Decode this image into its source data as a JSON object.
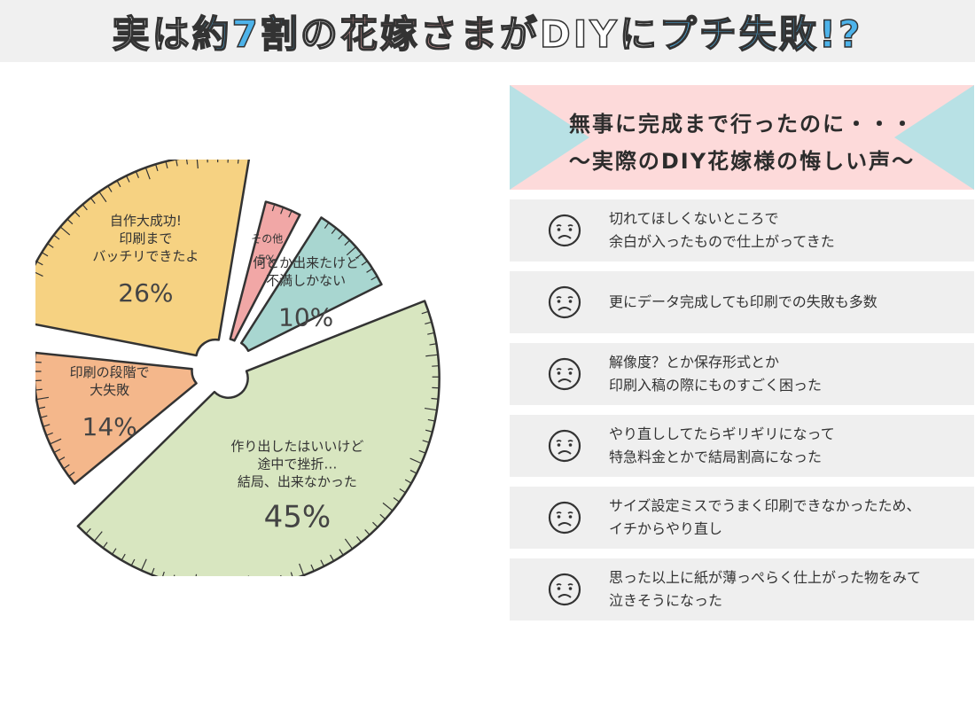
{
  "header": {
    "title_parts": [
      {
        "text": "実は",
        "color": "#ffffff"
      },
      {
        "text": "約7割",
        "color": "#4db3ea"
      },
      {
        "text": "の",
        "color": "#ffffff"
      },
      {
        "text": "花嫁さま",
        "color": "#f7b3b3"
      },
      {
        "text": "が",
        "color": "#ffffff"
      },
      {
        "text": "DIY",
        "color": "#ffffff"
      },
      {
        "text": "に",
        "color": "#ffffff"
      },
      {
        "text": "プチ失敗!?",
        "color": "#4db3ea"
      }
    ]
  },
  "chart_data": {
    "type": "pie",
    "title": "",
    "slices": [
      {
        "label_lines": [
          "作り出したはいいけど",
          "途中で挫折…",
          "結局、出来なかった"
        ],
        "value": 45,
        "percent_label": "45%",
        "color": "#d8e6c0"
      },
      {
        "label_lines": [
          "印刷の段階で",
          "大失敗"
        ],
        "value": 14,
        "percent_label": "14%",
        "color": "#f4b78b"
      },
      {
        "label_lines": [
          "自作大成功!",
          "印刷まで",
          "バッチリできたよ"
        ],
        "value": 26,
        "percent_label": "26%",
        "color": "#f6d282"
      },
      {
        "label_lines": [
          "その他"
        ],
        "value": 5,
        "percent_label": "5%",
        "color": "#f1a7a6"
      },
      {
        "label_lines": [
          "何とか出来たけど",
          "不満しかない"
        ],
        "value": 10,
        "percent_label": "10%",
        "color": "#a8d6d0"
      }
    ]
  },
  "panel": {
    "line1": "無事に完成まで行ったのに・・・",
    "line2": "〜実際のDIY花嫁様の悔しい声〜"
  },
  "voices": [
    {
      "icon": "sad-face-icon",
      "text": "切れてほしくないところで\n余白が入ったもので仕上がってきた"
    },
    {
      "icon": "sad-face-icon",
      "text": "更にデータ完成しても印刷での失敗も多数"
    },
    {
      "icon": "sad-face-icon",
      "text": "解像度？とか保存形式とか\n印刷入稿の際にものすごく困った"
    },
    {
      "icon": "sad-face-icon",
      "text": "やり直ししてたらギリギリになって\n特急料金とかで結局割高になった"
    },
    {
      "icon": "sad-face-icon",
      "text": "サイズ設定ミスでうまく印刷できなかったため、\nイチからやり直し"
    },
    {
      "icon": "sad-face-icon",
      "text": "思った以上に紙が薄っぺらく仕上がった物をみて\n泣きそうになった"
    }
  ]
}
